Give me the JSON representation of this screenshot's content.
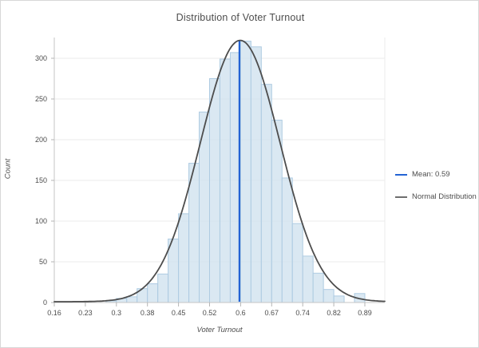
{
  "chart_data": {
    "type": "histogram",
    "title": "Distribution of Voter Turnout",
    "xlabel": "Voter Turnout",
    "ylabel": "Count",
    "x_tick_labels": [
      "0.16",
      "0.23",
      "0.3",
      "0.38",
      "0.45",
      "0.52",
      "0.6",
      "0.67",
      "0.74",
      "0.82",
      "0.89"
    ],
    "y_ticks": [
      0,
      50,
      100,
      150,
      200,
      250,
      300
    ],
    "ylim": [
      0,
      326
    ],
    "bins": {
      "start": 0.16,
      "end": 0.89,
      "count": 30,
      "width": 0.0243
    },
    "counts": [
      0,
      0,
      0,
      0,
      0,
      2,
      5,
      7,
      17,
      23,
      35,
      78,
      109,
      171,
      234,
      275,
      299,
      307,
      321,
      314,
      268,
      224,
      153,
      97,
      57,
      36,
      16,
      8,
      0,
      11
    ],
    "mean": 0.59,
    "normal_curve": {
      "mean": 0.59,
      "sigma": 0.094,
      "peak_count": 322
    },
    "legend": [
      {
        "label": "Mean: 0.59",
        "color": "#2363d4",
        "shape": "line"
      },
      {
        "label": "Normal Distribution",
        "color": "#6e6e6e",
        "shape": "line"
      }
    ],
    "colors": {
      "bar_fill": "#d3e4f0",
      "bar_stroke": "#aecbe2",
      "curve": "#4d4d4d",
      "mean_line": "#2363d4",
      "grid": "#ebebeb",
      "axis": "#c6c6c6",
      "tick": "#b5b5b5",
      "text": "#4d4d4d"
    }
  }
}
